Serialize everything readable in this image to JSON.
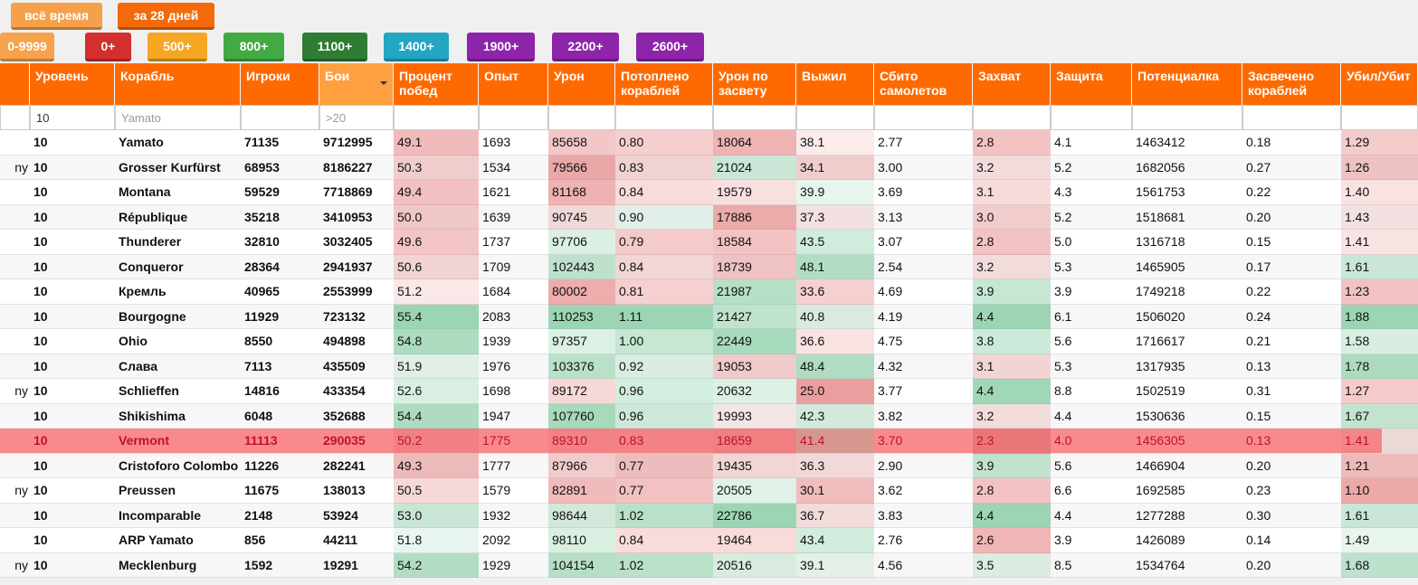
{
  "buttons": {
    "period": [
      "всё время",
      "за 28 дней"
    ],
    "rating": [
      "0-9999",
      "0+",
      "500+",
      "800+",
      "1100+",
      "1400+",
      "1900+",
      "2200+",
      "2600+"
    ]
  },
  "table": {
    "columns": [
      "Уровень",
      "Корабль",
      "Игроки",
      "Бои",
      "Процент побед",
      "Опыт",
      "Урон",
      "Потоплено кораблей",
      "Урон по засвету",
      "Выжил",
      "Сбито самолетов",
      "Захват",
      "Защита",
      "Потенциалка",
      "Засвечено кораблей",
      "Убил/Убит"
    ],
    "sorted_column": 3,
    "filters": {
      "0": "10",
      "1": "Yamato",
      "3": ">20"
    },
    "rows": [
      {
        "cells": [
          "10",
          "Yamato",
          "71135",
          "9712995",
          "49.1",
          "1693",
          "85658",
          "0.80",
          "18064",
          "38.1",
          "2.77",
          "2.8",
          "4.1",
          "1463412",
          "0.18",
          "1.29"
        ]
      },
      {
        "nation": "ny",
        "cells": [
          "10",
          "Grosser Kurfürst",
          "68953",
          "8186227",
          "50.3",
          "1534",
          "79566",
          "0.83",
          "21024",
          "34.1",
          "3.00",
          "3.2",
          "5.2",
          "1682056",
          "0.27",
          "1.26"
        ]
      },
      {
        "cells": [
          "10",
          "Montana",
          "59529",
          "7718869",
          "49.4",
          "1621",
          "81168",
          "0.84",
          "19579",
          "39.9",
          "3.69",
          "3.1",
          "4.3",
          "1561753",
          "0.22",
          "1.40"
        ]
      },
      {
        "cells": [
          "10",
          "République",
          "35218",
          "3410953",
          "50.0",
          "1639",
          "90745",
          "0.90",
          "17886",
          "37.3",
          "3.13",
          "3.0",
          "5.2",
          "1518681",
          "0.20",
          "1.43"
        ]
      },
      {
        "cells": [
          "10",
          "Thunderer",
          "32810",
          "3032405",
          "49.6",
          "1737",
          "97706",
          "0.79",
          "18584",
          "43.5",
          "3.07",
          "2.8",
          "5.0",
          "1316718",
          "0.15",
          "1.41"
        ]
      },
      {
        "cells": [
          "10",
          "Conqueror",
          "28364",
          "2941937",
          "50.6",
          "1709",
          "102443",
          "0.84",
          "18739",
          "48.1",
          "2.54",
          "3.2",
          "5.3",
          "1465905",
          "0.17",
          "1.61"
        ]
      },
      {
        "cells": [
          "10",
          "Кремль",
          "40965",
          "2553999",
          "51.2",
          "1684",
          "80002",
          "0.81",
          "21987",
          "33.6",
          "4.69",
          "3.9",
          "3.9",
          "1749218",
          "0.22",
          "1.23"
        ]
      },
      {
        "cells": [
          "10",
          "Bourgogne",
          "11929",
          "723132",
          "55.4",
          "2083",
          "110253",
          "1.11",
          "21427",
          "40.8",
          "4.19",
          "4.4",
          "6.1",
          "1506020",
          "0.24",
          "1.88"
        ]
      },
      {
        "cells": [
          "10",
          "Ohio",
          "8550",
          "494898",
          "54.8",
          "1939",
          "97357",
          "1.00",
          "22449",
          "36.6",
          "4.75",
          "3.8",
          "5.6",
          "1716617",
          "0.21",
          "1.58"
        ]
      },
      {
        "cells": [
          "10",
          "Слава",
          "7113",
          "435509",
          "51.9",
          "1976",
          "103376",
          "0.92",
          "19053",
          "48.4",
          "4.32",
          "3.1",
          "5.3",
          "1317935",
          "0.13",
          "1.78"
        ]
      },
      {
        "nation": "ny",
        "cells": [
          "10",
          "Schlieffen",
          "14816",
          "433354",
          "52.6",
          "1698",
          "89172",
          "0.96",
          "20632",
          "25.0",
          "3.77",
          "4.4",
          "8.8",
          "1502519",
          "0.31",
          "1.27"
        ]
      },
      {
        "cells": [
          "10",
          "Shikishima",
          "6048",
          "352688",
          "54.4",
          "1947",
          "107760",
          "0.96",
          "19993",
          "42.3",
          "3.82",
          "3.2",
          "4.4",
          "1530636",
          "0.15",
          "1.67"
        ]
      },
      {
        "highlight": true,
        "cells": [
          "10",
          "Vermont",
          "11113",
          "290035",
          "50.2",
          "1775",
          "89310",
          "0.83",
          "18659",
          "41.4",
          "3.70",
          "2.3",
          "4.0",
          "1456305",
          "0.13",
          "1.41"
        ]
      },
      {
        "cells": [
          "10",
          "Cristoforo Colombo",
          "11226",
          "282241",
          "49.3",
          "1777",
          "87966",
          "0.77",
          "19435",
          "36.3",
          "2.90",
          "3.9",
          "5.6",
          "1466904",
          "0.20",
          "1.21"
        ]
      },
      {
        "nation": "ny",
        "cells": [
          "10",
          "Preussen",
          "11675",
          "138013",
          "50.5",
          "1579",
          "82891",
          "0.77",
          "20505",
          "30.1",
          "3.62",
          "2.8",
          "6.6",
          "1692585",
          "0.23",
          "1.10"
        ]
      },
      {
        "cells": [
          "10",
          "Incomparable",
          "2148",
          "53924",
          "53.0",
          "1932",
          "98644",
          "1.02",
          "22786",
          "36.7",
          "3.83",
          "4.4",
          "4.4",
          "1277288",
          "0.30",
          "1.61"
        ]
      },
      {
        "cells": [
          "10",
          "ARP Yamato",
          "856",
          "44211",
          "51.8",
          "2092",
          "98110",
          "0.84",
          "19464",
          "43.4",
          "2.76",
          "2.6",
          "3.9",
          "1426089",
          "0.14",
          "1.49"
        ]
      },
      {
        "nation": "ny",
        "cells": [
          "10",
          "Mecklenburg",
          "1592",
          "19291",
          "54.2",
          "1929",
          "104154",
          "1.02",
          "20516",
          "39.1",
          "4.56",
          "3.5",
          "8.5",
          "1534764",
          "0.20",
          "1.68"
        ]
      }
    ]
  }
}
